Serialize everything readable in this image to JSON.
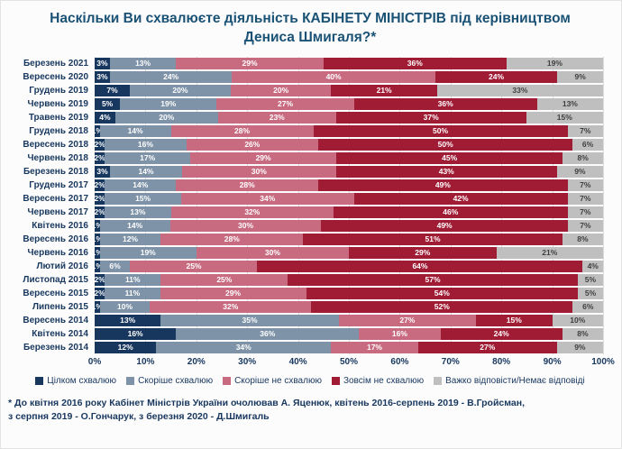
{
  "title": "Наскільки Ви схвалюєте діяльність КАБІНЕТУ МІНІСТРІВ під керівництвом Дениса Шмигаля?*",
  "footnote": {
    "line1": "* До квітня 2016 року Кабінет Міністрів України очолював А. Яценюк, квітень 2016-серпень 2019 - В.Гройсман,",
    "line2": "з серпня 2019 - О.Гончарук, з березня 2020 - Д.Шмигаль"
  },
  "colors": {
    "title_text": "#1a5276",
    "axis_text": "#17375e",
    "gridline": "#dcdcdc",
    "background": "#fcfcfc"
  },
  "chart_data": {
    "type": "bar",
    "orientation": "horizontal",
    "stacked": true,
    "grid": true,
    "legend_position": "bottom",
    "xlim": [
      0,
      100
    ],
    "x_ticks": [
      "0%",
      "10%",
      "20%",
      "30%",
      "40%",
      "50%",
      "60%",
      "70%",
      "80%",
      "90%",
      "100%"
    ],
    "categories": [
      "Березень 2021",
      "Вересень 2020",
      "Грудень 2019",
      "Червень 2019",
      "Травень 2019",
      "Грудень 2018",
      "Вересень 2018",
      "Червень 2018",
      "Березень 2018",
      "Грудень 2017",
      "Вересень 2017",
      "Червень 2017",
      "Квітень 2016",
      "Вересень 2016",
      "Червень 2016",
      "Лютий 2016",
      "Листопад 2015",
      "Вересень 2015",
      "Липень 2015",
      "Вересень 2014",
      "Квітень 2014",
      "Березень 2014"
    ],
    "series": [
      {
        "name": "Цілком схвалюю",
        "color": "#17375e",
        "values": [
          3,
          3,
          7,
          5,
          4,
          1,
          2,
          2,
          3,
          2,
          2,
          2,
          1,
          1,
          1,
          1,
          2,
          2,
          1,
          13,
          16,
          12
        ]
      },
      {
        "name": "Скоріше схвалюю",
        "color": "#7e93a8",
        "values": [
          13,
          24,
          20,
          19,
          20,
          14,
          16,
          17,
          14,
          14,
          15,
          13,
          14,
          12,
          19,
          6,
          11,
          11,
          10,
          35,
          36,
          34
        ]
      },
      {
        "name": "Скоріше не схвалюю",
        "color": "#c86b80",
        "values": [
          29,
          40,
          20,
          27,
          23,
          28,
          26,
          29,
          30,
          28,
          34,
          32,
          30,
          28,
          30,
          25,
          25,
          29,
          32,
          27,
          16,
          17
        ]
      },
      {
        "name": "Зовсім не схвалюю",
        "color": "#a01c35",
        "values": [
          36,
          24,
          21,
          36,
          37,
          50,
          50,
          45,
          43,
          49,
          42,
          46,
          49,
          51,
          29,
          64,
          57,
          54,
          52,
          15,
          24,
          27
        ]
      },
      {
        "name": "Важко відповісти/Немає відповіді",
        "color": "#bfbfbf",
        "values": [
          19,
          9,
          33,
          13,
          15,
          7,
          6,
          8,
          9,
          7,
          7,
          7,
          7,
          8,
          21,
          4,
          5,
          5,
          6,
          10,
          8,
          9
        ]
      }
    ]
  }
}
